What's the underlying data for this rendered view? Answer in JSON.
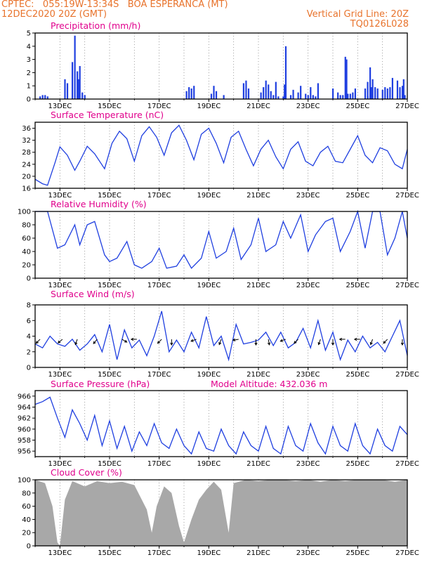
{
  "header": {
    "line1_left": "CPTEC:   055:19W-13:34S   BOA ESPERANCA (MT)",
    "line2_left": "12DEC2020 20Z (GMT)",
    "line2_right": "Vertical Grid Line: 20Z",
    "line3_right": "TQ0126L028",
    "model_altitude": "Model Altitude: 432.036 m"
  },
  "colors": {
    "header": "#e8732c",
    "title": "#e0008c",
    "series": "#1f3fe0",
    "cloud": "#a8a8a8",
    "grid": "#888888"
  },
  "chart_data": [
    {
      "type": "bar",
      "title": "Precipitation (mm/h)",
      "xlim": [
        0,
        15
      ],
      "ylim": [
        0,
        5
      ],
      "yticks": [
        0,
        1,
        2,
        3,
        4,
        5
      ],
      "xtick_labels": [
        "13DEC",
        "15DEC",
        "17DEC",
        "19DEC",
        "21DEC",
        "23DEC",
        "25DEC",
        "27DEC"
      ],
      "x": [
        0.2,
        0.3,
        0.4,
        0.5,
        1.2,
        1.3,
        1.5,
        1.6,
        1.7,
        1.75,
        1.8,
        1.9,
        2.0,
        6.1,
        6.2,
        6.3,
        6.4,
        7.1,
        7.2,
        7.3,
        8.4,
        8.5,
        8.6,
        9.1,
        9.2,
        9.3,
        9.4,
        9.5,
        9.6,
        9.7,
        9.8,
        10.3,
        10.4,
        10.6,
        10.7,
        10.9,
        11.0,
        11.1,
        11.2,
        11.3,
        12.0,
        12.2,
        12.3,
        12.4,
        12.6,
        12.7,
        12.8,
        13.3,
        13.4,
        13.5,
        13.6,
        13.7,
        13.8,
        14.0,
        14.2,
        14.4,
        14.6,
        14.7,
        14.8,
        14.85
      ],
      "values": [
        0.2,
        0.3,
        0.3,
        0.2,
        1.5,
        1.2,
        2.8,
        4.8,
        2.1,
        1.5,
        2.5,
        0.5,
        0.3,
        0.6,
        0.9,
        0.8,
        1.0,
        0.4,
        1.0,
        0.6,
        1.2,
        1.4,
        0.8,
        0.5,
        0.9,
        1.4,
        1.1,
        0.6,
        0.3,
        1.3,
        0.2,
        0.3,
        0.7,
        0.5,
        1.0,
        0.4,
        0.3,
        0.9,
        0.3,
        0.2,
        0.8,
        0.5,
        0.3,
        0.3,
        0.4,
        0.4,
        0.5,
        0.8,
        1.3,
        2.4,
        1.5,
        0.9,
        0.8,
        0.7,
        0.8,
        1.6,
        1.4,
        0.9,
        1.0,
        1.5
      ],
      "extra_bars": [
        {
          "x": 11.4,
          "v": 1.2
        },
        {
          "x": 12.5,
          "v": 3.2
        },
        {
          "x": 12.9,
          "v": 0.8
        },
        {
          "x": 10.0,
          "v": 0.2
        },
        {
          "x": 7.6,
          "v": 0.3
        },
        {
          "x": 14.3,
          "v": 0.9
        },
        {
          "x": 10.05,
          "v": 1.1
        },
        {
          "x": 10.1,
          "v": 4.0
        },
        {
          "x": 12.55,
          "v": 3.0
        },
        {
          "x": 13.4,
          "v": 0.2
        },
        {
          "x": 13.55,
          "v": 0.9
        },
        {
          "x": 14.9,
          "v": 0.3
        },
        {
          "x": 14.1,
          "v": 0.9
        }
      ]
    },
    {
      "type": "line",
      "title": "Surface Temperature (nC)",
      "xlim": [
        0,
        15
      ],
      "ylim": [
        16,
        38
      ],
      "yticks": [
        16,
        20,
        24,
        28,
        32,
        36
      ],
      "xtick_labels": [
        "13DEC",
        "15DEC",
        "17DEC",
        "19DEC",
        "21DEC",
        "23DEC",
        "25DEC",
        "27DEC"
      ],
      "x": [
        0.0,
        0.3,
        0.5,
        0.8,
        1.0,
        1.3,
        1.6,
        1.8,
        2.1,
        2.4,
        2.8,
        3.1,
        3.4,
        3.7,
        4.0,
        4.3,
        4.6,
        4.9,
        5.2,
        5.5,
        5.8,
        6.1,
        6.4,
        6.7,
        7.0,
        7.3,
        7.6,
        7.9,
        8.2,
        8.5,
        8.8,
        9.1,
        9.4,
        9.7,
        10.0,
        10.3,
        10.6,
        10.9,
        11.2,
        11.5,
        11.8,
        12.1,
        12.4,
        12.7,
        13.0,
        13.3,
        13.6,
        13.9,
        14.2,
        14.5,
        14.8,
        15.0
      ],
      "values": [
        19.0,
        17.5,
        17.0,
        24.5,
        29.8,
        27.0,
        22.0,
        25.0,
        30.0,
        27.5,
        22.5,
        31.0,
        35.0,
        32.5,
        25.0,
        33.5,
        36.5,
        33.0,
        27.0,
        34.5,
        37.0,
        32.0,
        25.5,
        34.0,
        36.0,
        31.0,
        24.5,
        33.0,
        35.0,
        29.0,
        23.5,
        29.0,
        32.0,
        26.5,
        22.5,
        29.0,
        31.5,
        25.0,
        23.5,
        28.0,
        30.0,
        25.0,
        24.5,
        29.0,
        33.5,
        27.0,
        24.5,
        29.5,
        28.5,
        24.0,
        22.5,
        29.0
      ],
      "ylabel": ""
    },
    {
      "type": "line",
      "title": "Relative Humidity (%)",
      "xlim": [
        0,
        15
      ],
      "ylim": [
        0,
        100
      ],
      "yticks": [
        0,
        20,
        40,
        60,
        80,
        100
      ],
      "xtick_labels": [
        "13DEC",
        "15DEC",
        "17DEC",
        "19DEC",
        "21DEC",
        "23DEC",
        "25DEC",
        "27DEC"
      ],
      "x": [
        0.0,
        0.5,
        0.9,
        1.2,
        1.6,
        1.8,
        2.1,
        2.4,
        2.8,
        3.0,
        3.3,
        3.7,
        4.0,
        4.3,
        4.7,
        5.0,
        5.3,
        5.7,
        6.0,
        6.3,
        6.7,
        7.0,
        7.3,
        7.7,
        8.0,
        8.3,
        8.7,
        9.0,
        9.3,
        9.7,
        10.0,
        10.3,
        10.7,
        11.0,
        11.3,
        11.7,
        12.0,
        12.3,
        12.7,
        13.0,
        13.3,
        13.6,
        13.9,
        14.2,
        14.5,
        14.8,
        15.0
      ],
      "values": [
        100,
        100,
        45,
        50,
        80,
        50,
        80,
        85,
        35,
        25,
        30,
        55,
        20,
        15,
        25,
        45,
        15,
        18,
        35,
        15,
        30,
        70,
        30,
        40,
        75,
        28,
        50,
        90,
        40,
        50,
        85,
        60,
        95,
        40,
        65,
        85,
        90,
        40,
        70,
        100,
        45,
        100,
        100,
        35,
        60,
        100,
        60
      ],
      "ylabel": ""
    },
    {
      "type": "line",
      "title": "Surface Wind (m/s)",
      "xlim": [
        0,
        15
      ],
      "ylim": [
        0,
        8
      ],
      "yticks": [
        0,
        2,
        4,
        6,
        8
      ],
      "xtick_labels": [
        "13DEC",
        "15DEC",
        "17DEC",
        "19DEC",
        "21DEC",
        "23DEC",
        "25DEC",
        "27DEC"
      ],
      "x": [
        0.0,
        0.3,
        0.6,
        0.9,
        1.2,
        1.5,
        1.8,
        2.1,
        2.4,
        2.7,
        3.0,
        3.3,
        3.6,
        3.9,
        4.2,
        4.5,
        4.8,
        5.1,
        5.4,
        5.7,
        6.0,
        6.3,
        6.6,
        6.9,
        7.2,
        7.5,
        7.8,
        8.1,
        8.4,
        8.7,
        9.0,
        9.3,
        9.6,
        9.9,
        10.2,
        10.5,
        10.8,
        11.1,
        11.4,
        11.7,
        12.0,
        12.3,
        12.6,
        12.9,
        13.2,
        13.5,
        13.8,
        14.1,
        14.4,
        14.7,
        15.0
      ],
      "values": [
        3.0,
        2.5,
        4.0,
        3.0,
        2.7,
        3.6,
        2.2,
        3.0,
        4.2,
        2.0,
        5.5,
        1.0,
        4.8,
        2.5,
        3.5,
        1.5,
        4.0,
        7.2,
        2.0,
        3.5,
        2.0,
        4.5,
        2.5,
        6.5,
        2.8,
        4.0,
        1.0,
        5.5,
        3.0,
        3.2,
        3.5,
        4.5,
        2.8,
        4.5,
        2.5,
        3.2,
        5.0,
        2.5,
        6.0,
        2.2,
        4.5,
        1.0,
        3.5,
        2.0,
        4.0,
        2.5,
        3.2,
        2.0,
        4.0,
        6.0,
        1.5
      ],
      "vectors": [
        {
          "x": 0.2,
          "dir": 225
        },
        {
          "x": 1.1,
          "dir": 230
        },
        {
          "x": 1.7,
          "dir": 200
        },
        {
          "x": 2.5,
          "dir": 220
        },
        {
          "x": 3.5,
          "dir": 120
        },
        {
          "x": 4.1,
          "dir": 270
        },
        {
          "x": 5.1,
          "dir": 225
        },
        {
          "x": 5.5,
          "dir": 180
        },
        {
          "x": 6.5,
          "dir": 250
        },
        {
          "x": 7.5,
          "dir": 200
        },
        {
          "x": 8.2,
          "dir": 260
        },
        {
          "x": 8.9,
          "dir": 180
        },
        {
          "x": 9.4,
          "dir": 170
        },
        {
          "x": 10.1,
          "dir": 250
        },
        {
          "x": 10.6,
          "dir": 225
        },
        {
          "x": 11.5,
          "dir": 200
        },
        {
          "x": 12.0,
          "dir": 180
        },
        {
          "x": 12.5,
          "dir": 270
        },
        {
          "x": 13.1,
          "dir": 270
        },
        {
          "x": 13.6,
          "dir": 200
        },
        {
          "x": 14.2,
          "dir": 225
        },
        {
          "x": 14.8,
          "dir": 180
        }
      ]
    },
    {
      "type": "line",
      "title": "Surface Pressure (hPa)",
      "xlim": [
        0,
        15
      ],
      "ylim": [
        955,
        967
      ],
      "yticks": [
        956,
        958,
        960,
        962,
        964,
        966
      ],
      "xtick_labels": [
        "13DEC",
        "15DEC",
        "17DEC",
        "19DEC",
        "21DEC",
        "23DEC",
        "25DEC",
        "27DEC"
      ],
      "x": [
        0.0,
        0.3,
        0.6,
        0.9,
        1.2,
        1.5,
        1.8,
        2.1,
        2.4,
        2.7,
        3.0,
        3.3,
        3.6,
        3.9,
        4.2,
        4.5,
        4.8,
        5.1,
        5.4,
        5.7,
        6.0,
        6.3,
        6.6,
        6.9,
        7.2,
        7.5,
        7.8,
        8.1,
        8.4,
        8.7,
        9.0,
        9.3,
        9.6,
        9.9,
        10.2,
        10.5,
        10.8,
        11.1,
        11.4,
        11.7,
        12.0,
        12.3,
        12.6,
        12.9,
        13.2,
        13.5,
        13.8,
        14.1,
        14.4,
        14.7,
        15.0
      ],
      "values": [
        964.5,
        965.0,
        965.8,
        962.0,
        958.5,
        963.5,
        961.0,
        958.0,
        962.5,
        957.0,
        961.5,
        956.5,
        960.5,
        956.0,
        959.5,
        957.0,
        961.0,
        957.5,
        956.5,
        960.0,
        957.0,
        955.5,
        959.5,
        956.5,
        956.0,
        960.0,
        957.0,
        955.5,
        959.5,
        957.0,
        956.0,
        960.5,
        956.5,
        955.5,
        960.5,
        957.0,
        956.0,
        961.0,
        957.5,
        955.5,
        960.5,
        957.0,
        956.0,
        961.0,
        957.0,
        955.5,
        960.0,
        957.0,
        956.0,
        960.5,
        959.0
      ]
    },
    {
      "type": "area",
      "title": "Cloud Cover (%)",
      "xlim": [
        0,
        15
      ],
      "ylim": [
        0,
        100
      ],
      "yticks": [
        0,
        20,
        40,
        60,
        80,
        100
      ],
      "xtick_labels": [
        "13DEC",
        "15DEC",
        "17DEC",
        "19DEC",
        "21DEC",
        "23DEC",
        "25DEC",
        "27DEC"
      ],
      "x": [
        0.0,
        0.4,
        0.7,
        0.9,
        1.0,
        1.2,
        1.5,
        2.0,
        2.5,
        3.0,
        3.5,
        4.0,
        4.5,
        4.7,
        4.9,
        5.2,
        5.5,
        5.8,
        6.0,
        6.3,
        6.6,
        6.9,
        7.2,
        7.5,
        7.8,
        8.0,
        8.3,
        8.5,
        9.0,
        9.5,
        10.0,
        10.5,
        11.0,
        11.5,
        12.0,
        12.5,
        13.0,
        13.5,
        14.0,
        14.5,
        15.0
      ],
      "values": [
        100,
        95,
        60,
        5,
        0,
        70,
        98,
        90,
        98,
        95,
        97,
        92,
        55,
        20,
        60,
        90,
        80,
        30,
        5,
        40,
        70,
        85,
        97,
        85,
        20,
        95,
        98,
        100,
        98,
        100,
        100,
        98,
        100,
        97,
        100,
        98,
        100,
        100,
        100,
        97,
        100
      ]
    }
  ]
}
